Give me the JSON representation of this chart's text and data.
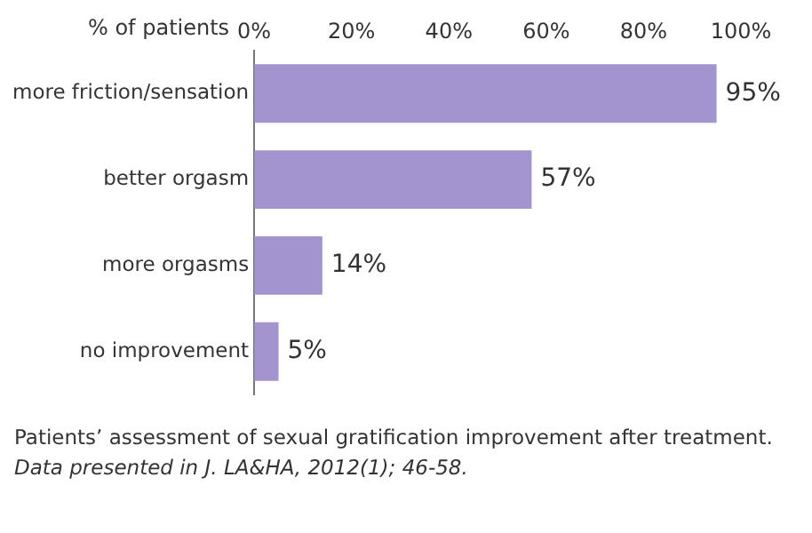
{
  "chart_data": {
    "type": "bar",
    "orientation": "horizontal",
    "xlabel": "% of patients",
    "categories": [
      "more friction/sensation",
      "better orgasm",
      "more orgasms",
      "no improvement"
    ],
    "values": [
      95,
      57,
      14,
      5
    ],
    "color": "#a394d0",
    "value_labels": [
      "95%",
      "57%",
      "14%",
      "5%"
    ],
    "xlim": [
      0,
      100
    ],
    "xticks": [
      {
        "value": 0,
        "label": "0%"
      },
      {
        "value": 20,
        "label": "20%"
      },
      {
        "value": 40,
        "label": "40%"
      },
      {
        "value": 60,
        "label": "60%"
      },
      {
        "value": 80,
        "label": "80%"
      },
      {
        "value": 100,
        "label": "100%"
      }
    ],
    "grid": false,
    "legend": false,
    "annotations": [
      "Patients’ assessment of sexual gratification improvement after treatment.",
      "Data presented in J. LA&HA, 2012(1); 46-58."
    ]
  }
}
